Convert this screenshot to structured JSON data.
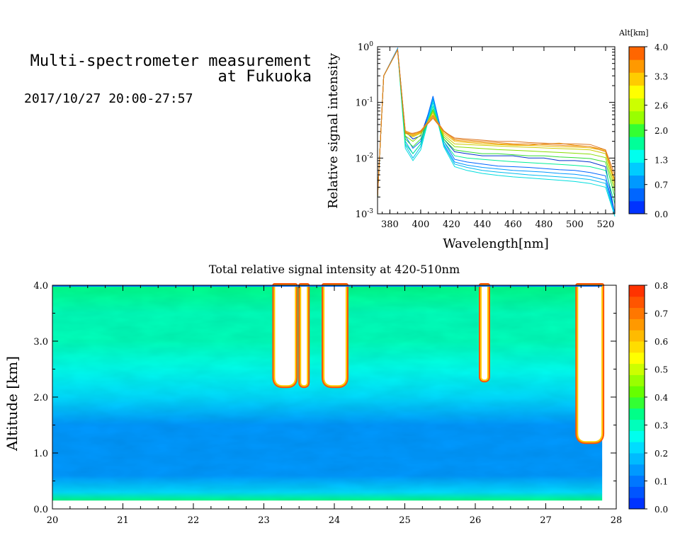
{
  "header": {
    "title_line1": "Multi-spectrometer measurement",
    "title_line2": "at Fukuoka",
    "datetime": "2017/10/27 20:00-27:57"
  },
  "chart_data": [
    {
      "type": "line",
      "xlabel": "Wavelength[nm]",
      "ylabel": "Relative signal intensity",
      "yscale": "log",
      "xlim": [
        372,
        526
      ],
      "ylim": [
        0.001,
        1
      ],
      "x_ticks": [
        "380",
        "400",
        "420",
        "440",
        "460",
        "480",
        "500",
        "520"
      ],
      "y_ticks": [
        "10^-3",
        "10^-2",
        "10^-1",
        "10^0"
      ],
      "colorbar": {
        "title": "Alt[km]",
        "ticks": [
          "0.0",
          "0.7",
          "1.3",
          "2.0",
          "2.6",
          "3.3",
          "4.0"
        ],
        "range": [
          0,
          4
        ],
        "colors": [
          "#0033ff",
          "#0066ff",
          "#0099ff",
          "#00ccff",
          "#00ffee",
          "#00ff99",
          "#33ff33",
          "#99ff00",
          "#ccff00",
          "#ffff00",
          "#ffcc00",
          "#ff9900",
          "#ff6600"
        ]
      },
      "x": [
        372,
        376,
        385,
        390,
        395,
        400,
        408,
        415,
        422,
        430,
        440,
        450,
        460,
        470,
        480,
        490,
        500,
        510,
        520,
        526
      ],
      "series": [
        {
          "altitude": 0.1,
          "color": "#0033cc",
          "values": [
            0.002,
            0.3,
            0.92,
            0.03,
            0.022,
            0.025,
            0.11,
            0.022,
            0.013,
            0.012,
            0.011,
            0.011,
            0.011,
            0.01,
            0.01,
            0.009,
            0.009,
            0.0085,
            0.007,
            0.001
          ]
        },
        {
          "altitude": 0.3,
          "color": "#0066ff",
          "values": [
            0.002,
            0.3,
            0.93,
            0.025,
            0.015,
            0.02,
            0.13,
            0.02,
            0.0095,
            0.0085,
            0.0078,
            0.0072,
            0.007,
            0.0068,
            0.0065,
            0.0062,
            0.006,
            0.0055,
            0.0048,
            0.001
          ]
        },
        {
          "altitude": 0.6,
          "color": "#0099ff",
          "values": [
            0.002,
            0.3,
            0.92,
            0.02,
            0.012,
            0.018,
            0.12,
            0.018,
            0.0085,
            0.0075,
            0.0068,
            0.0064,
            0.006,
            0.0058,
            0.0056,
            0.0053,
            0.0051,
            0.0047,
            0.004,
            0.001
          ]
        },
        {
          "altitude": 0.9,
          "color": "#00bbee",
          "values": [
            0.002,
            0.3,
            0.9,
            0.017,
            0.01,
            0.016,
            0.11,
            0.017,
            0.0078,
            0.0068,
            0.006,
            0.0056,
            0.0053,
            0.005,
            0.0048,
            0.0046,
            0.0044,
            0.0041,
            0.0035,
            0.0009
          ]
        },
        {
          "altitude": 1.2,
          "color": "#00dddd",
          "values": [
            0.002,
            0.3,
            0.88,
            0.015,
            0.009,
            0.014,
            0.1,
            0.016,
            0.007,
            0.006,
            0.0053,
            0.0049,
            0.0046,
            0.0044,
            0.0042,
            0.004,
            0.0038,
            0.0035,
            0.003,
            0.0009
          ]
        },
        {
          "altitude": 1.5,
          "color": "#00ee99",
          "values": [
            0.002,
            0.3,
            0.88,
            0.018,
            0.012,
            0.018,
            0.085,
            0.02,
            0.011,
            0.01,
            0.0095,
            0.009,
            0.0086,
            0.0083,
            0.008,
            0.0077,
            0.0074,
            0.007,
            0.006,
            0.0015
          ]
        },
        {
          "altitude": 1.9,
          "color": "#33dd33",
          "values": [
            0.002,
            0.3,
            0.88,
            0.022,
            0.016,
            0.022,
            0.075,
            0.022,
            0.014,
            0.013,
            0.012,
            0.012,
            0.0115,
            0.011,
            0.011,
            0.0105,
            0.0102,
            0.0098,
            0.0085,
            0.002
          ]
        },
        {
          "altitude": 2.3,
          "color": "#88dd00",
          "values": [
            0.002,
            0.3,
            0.88,
            0.025,
            0.02,
            0.026,
            0.07,
            0.024,
            0.016,
            0.0155,
            0.0148,
            0.0142,
            0.0138,
            0.0134,
            0.013,
            0.0126,
            0.0122,
            0.0118,
            0.0102,
            0.0025
          ]
        },
        {
          "altitude": 2.7,
          "color": "#cccc00",
          "values": [
            0.002,
            0.3,
            0.88,
            0.028,
            0.024,
            0.028,
            0.065,
            0.026,
            0.018,
            0.0175,
            0.017,
            0.0165,
            0.016,
            0.0156,
            0.0152,
            0.0148,
            0.0145,
            0.014,
            0.012,
            0.003
          ]
        },
        {
          "altitude": 3.0,
          "color": "#eebb00",
          "values": [
            0.002,
            0.3,
            0.88,
            0.03,
            0.026,
            0.03,
            0.06,
            0.028,
            0.02,
            0.019,
            0.018,
            0.0175,
            0.017,
            0.0168,
            0.0165,
            0.016,
            0.0157,
            0.0152,
            0.0135,
            0.0035
          ]
        },
        {
          "altitude": 3.4,
          "color": "#ee9900",
          "values": [
            0.002,
            0.3,
            0.88,
            0.029,
            0.025,
            0.029,
            0.055,
            0.03,
            0.021,
            0.02,
            0.019,
            0.018,
            0.0175,
            0.017,
            0.018,
            0.0185,
            0.017,
            0.016,
            0.014,
            0.004
          ]
        },
        {
          "altitude": 3.7,
          "color": "#e88a22",
          "values": [
            0.002,
            0.3,
            0.88,
            0.031,
            0.027,
            0.031,
            0.058,
            0.031,
            0.022,
            0.021,
            0.02,
            0.019,
            0.018,
            0.018,
            0.0175,
            0.017,
            0.0165,
            0.016,
            0.013,
            0.004
          ]
        },
        {
          "altitude": 3.9,
          "color": "#dd7722",
          "values": [
            0.002,
            0.3,
            0.88,
            0.028,
            0.028,
            0.03,
            0.052,
            0.03,
            0.023,
            0.022,
            0.021,
            0.02,
            0.02,
            0.019,
            0.0185,
            0.018,
            0.018,
            0.0175,
            0.014,
            0.005
          ]
        }
      ]
    },
    {
      "type": "heatmap",
      "title": "Total relative signal intensity at 420-510nm",
      "ylabel": "Altitude [km]",
      "xlabel": "",
      "xlim": [
        20,
        28
      ],
      "ylim": [
        0,
        4
      ],
      "x_ticks": [
        "20",
        "21",
        "22",
        "23",
        "24",
        "25",
        "26",
        "27",
        "28"
      ],
      "y_ticks": [
        "0.0",
        "1.0",
        "2.0",
        "3.0",
        "4.0"
      ],
      "data_x_range": [
        20,
        27.8
      ],
      "data_y_range": [
        0.15,
        4.0
      ],
      "colorbar": {
        "ticks": [
          "0.0",
          "0.1",
          "0.2",
          "0.3",
          "0.4",
          "0.5",
          "0.6",
          "0.7",
          "0.8"
        ],
        "range": [
          0,
          0.8
        ],
        "colors": [
          "#0033ff",
          "#0055ff",
          "#0077ff",
          "#0099ff",
          "#00bbff",
          "#00ddff",
          "#00ffee",
          "#00ffbb",
          "#00ff88",
          "#33ff33",
          "#66ff00",
          "#99ff00",
          "#ccff00",
          "#ffff00",
          "#ffdd00",
          "#ffbb00",
          "#ff9900",
          "#ff7700",
          "#ff5500",
          "#ff3300"
        ]
      },
      "intensity_profile": [
        {
          "altitude": 0.15,
          "value": 0.35
        },
        {
          "altitude": 0.3,
          "value": 0.22
        },
        {
          "altitude": 0.6,
          "value": 0.16
        },
        {
          "altitude": 1.0,
          "value": 0.12
        },
        {
          "altitude": 1.5,
          "value": 0.16
        },
        {
          "altitude": 2.0,
          "value": 0.2
        },
        {
          "altitude": 2.5,
          "value": 0.26
        },
        {
          "altitude": 3.0,
          "value": 0.31
        },
        {
          "altitude": 3.5,
          "value": 0.32
        },
        {
          "altitude": 4.0,
          "value": 0.33
        }
      ],
      "saturated_plumes": [
        {
          "time_start": 23.15,
          "time_end": 23.45,
          "bottom_altitude": 2.2
        },
        {
          "time_start": 23.52,
          "time_end": 23.62,
          "bottom_altitude": 2.2
        },
        {
          "time_start": 23.85,
          "time_end": 24.17,
          "bottom_altitude": 2.2
        },
        {
          "time_start": 26.08,
          "time_end": 26.18,
          "bottom_altitude": 2.3
        },
        {
          "time_start": 27.45,
          "time_end": 27.8,
          "bottom_altitude": 1.2
        }
      ]
    }
  ]
}
